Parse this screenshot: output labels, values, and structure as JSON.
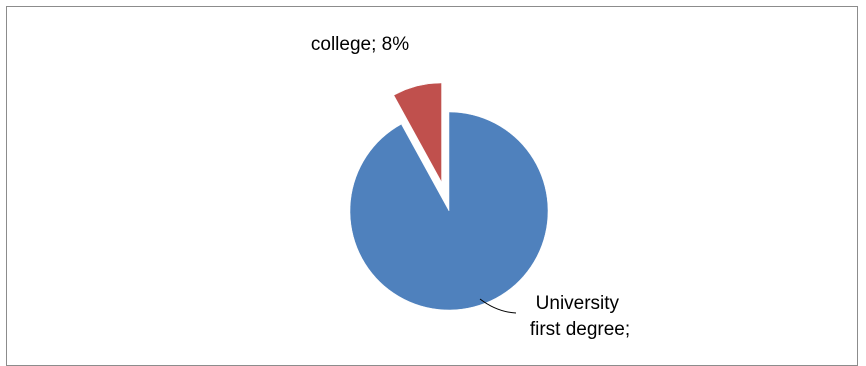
{
  "chart_data": {
    "type": "pie",
    "title": "",
    "slices": [
      {
        "label": "University first degree",
        "value": 92,
        "color": "#4f81bd",
        "text_lines": [
          "University",
          "first degree;"
        ]
      },
      {
        "label": "college",
        "value": 8,
        "color": "#c0504d",
        "text_lines": [
          "college; 8%"
        ],
        "exploded": true
      }
    ],
    "legend": "none"
  }
}
